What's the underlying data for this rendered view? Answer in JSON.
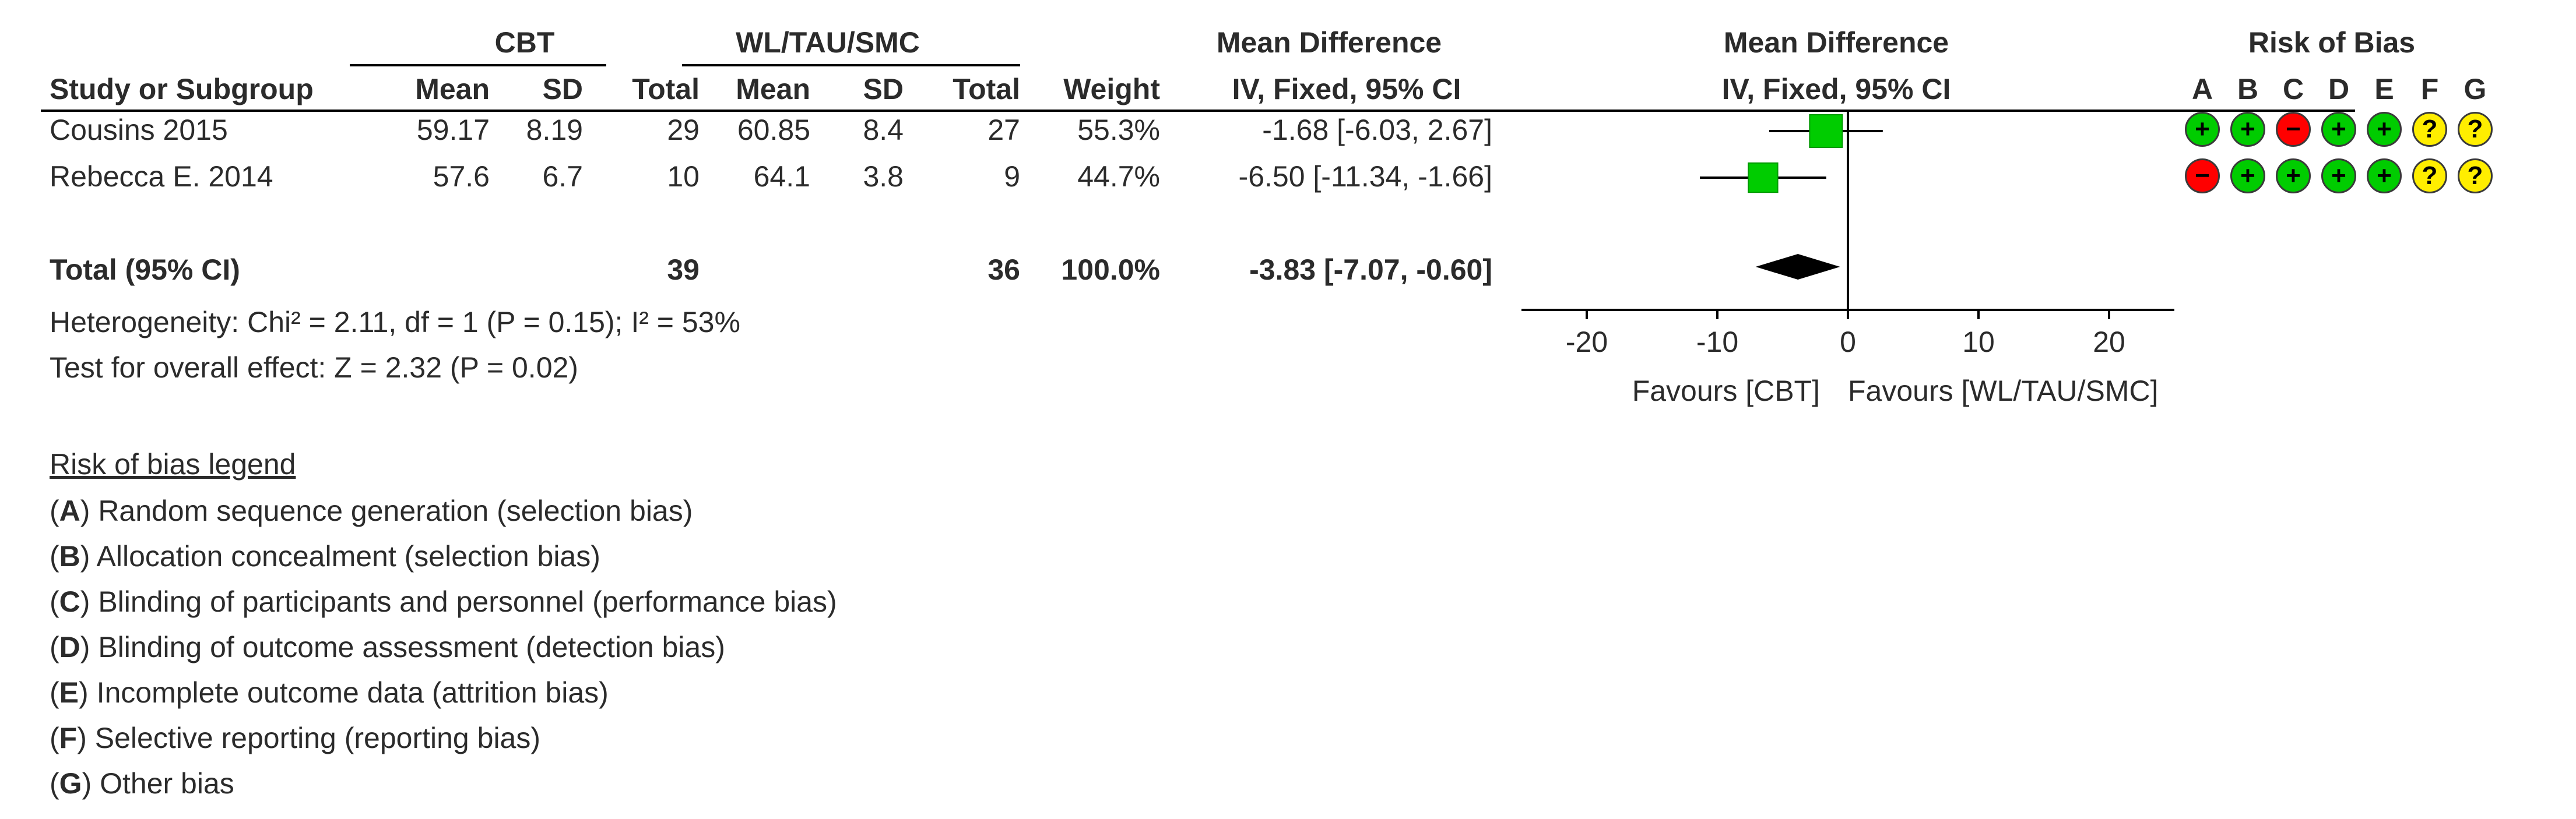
{
  "headers": {
    "group1": "CBT",
    "group2": "WL/TAU/SMC",
    "md_table": "Mean Difference",
    "md_table_sub": "IV, Fixed, 95% CI",
    "md_plot": "Mean Difference",
    "md_plot_sub": "IV, Fixed, 95% CI",
    "rob": "Risk of Bias",
    "study": "Study or Subgroup",
    "mean": "Mean",
    "sd": "SD",
    "total": "Total",
    "weight": "Weight",
    "rob_letters": [
      "A",
      "B",
      "C",
      "D",
      "E",
      "F",
      "G"
    ]
  },
  "studies": [
    {
      "name": "Cousins 2015",
      "m1": "59.17",
      "sd1": "8.19",
      "n1": "29",
      "m2": "60.85",
      "sd2": "8.4",
      "n2": "27",
      "weight": "55.3%",
      "ci": "-1.68 [-6.03, 2.67]",
      "rob": [
        "low",
        "low",
        "high",
        "low",
        "low",
        "unclear",
        "unclear"
      ]
    },
    {
      "name": "Rebecca E. 2014",
      "m1": "57.6",
      "sd1": "6.7",
      "n1": "10",
      "m2": "64.1",
      "sd2": "3.8",
      "n2": "9",
      "weight": "44.7%",
      "ci": "-6.50 [-11.34, -1.66]",
      "rob": [
        "high",
        "low",
        "low",
        "low",
        "low",
        "unclear",
        "unclear"
      ]
    }
  ],
  "total": {
    "label": "Total (95% CI)",
    "n1": "39",
    "n2": "36",
    "weight": "100.0%",
    "ci": "-3.83 [-7.07, -0.60]"
  },
  "heterogeneity": "Heterogeneity: Chi² = 2.11, df = 1 (P = 0.15); I² = 53%",
  "overall_effect": "Test for overall effect: Z = 2.32 (P = 0.02)",
  "favours_left": "Favours [CBT]",
  "favours_right": "Favours [WL/TAU/SMC]",
  "rob_symbols": {
    "low": "+",
    "high": "−",
    "unclear": "?"
  },
  "rob_colors": {
    "low": "#00cc00",
    "high": "#ff0000",
    "unclear": "#ffee00"
  },
  "marker_color": "#00cc00",
  "legend": {
    "title": "Risk of bias legend",
    "items": [
      {
        "key": "A",
        "text": " Random sequence generation (selection bias)"
      },
      {
        "key": "B",
        "text": " Allocation concealment (selection bias)"
      },
      {
        "key": "C",
        "text": " Blinding of participants and personnel (performance bias)"
      },
      {
        "key": "D",
        "text": " Blinding of outcome assessment (detection bias)"
      },
      {
        "key": "E",
        "text": " Incomplete outcome data (attrition bias)"
      },
      {
        "key": "F",
        "text": " Selective reporting (reporting bias)"
      },
      {
        "key": "G",
        "text": " Other bias"
      }
    ]
  },
  "chart_data": {
    "type": "forest",
    "xlim": [
      -25,
      25
    ],
    "ticks": [
      -20,
      -10,
      0,
      10,
      20
    ],
    "tick_labels": [
      "-20",
      "-10",
      "0",
      "10",
      "20"
    ],
    "studies": [
      {
        "name": "Cousins 2015",
        "estimate": -1.68,
        "lower": -6.03,
        "upper": 2.67,
        "weight": 55.3
      },
      {
        "name": "Rebecca E. 2014",
        "estimate": -6.5,
        "lower": -11.34,
        "upper": -1.66,
        "weight": 44.7
      }
    ],
    "pooled": {
      "estimate": -3.83,
      "lower": -7.07,
      "upper": -0.6
    }
  }
}
